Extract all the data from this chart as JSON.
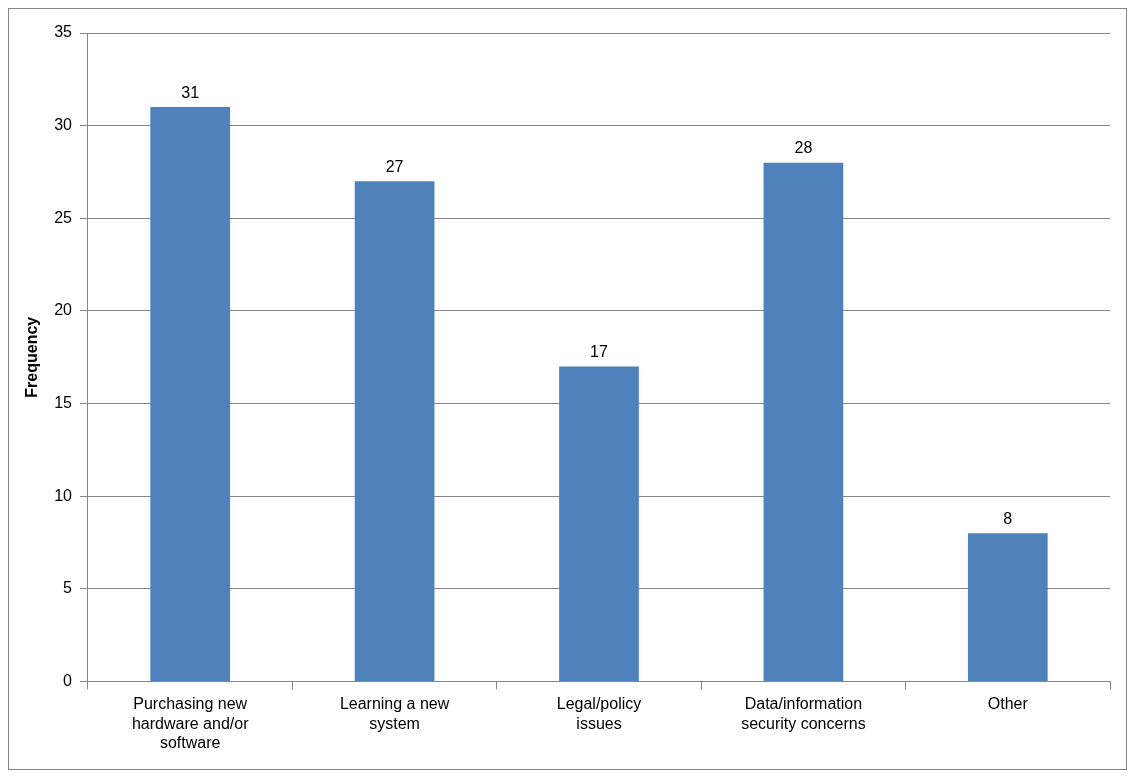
{
  "chart_data": {
    "type": "bar",
    "ylabel": "Frequency",
    "categories": [
      "Purchasing new hardware and/or software",
      "Learning a new system",
      "Legal/policy issues",
      "Data/information security concerns",
      "Other"
    ],
    "values": [
      31,
      27,
      17,
      28,
      8
    ],
    "color": "#4f81bd",
    "ylim": [
      0,
      35
    ],
    "yticks": [
      0,
      5,
      10,
      15,
      20,
      25,
      30,
      35
    ],
    "grid": "y",
    "data_labels": true,
    "legend": false
  }
}
